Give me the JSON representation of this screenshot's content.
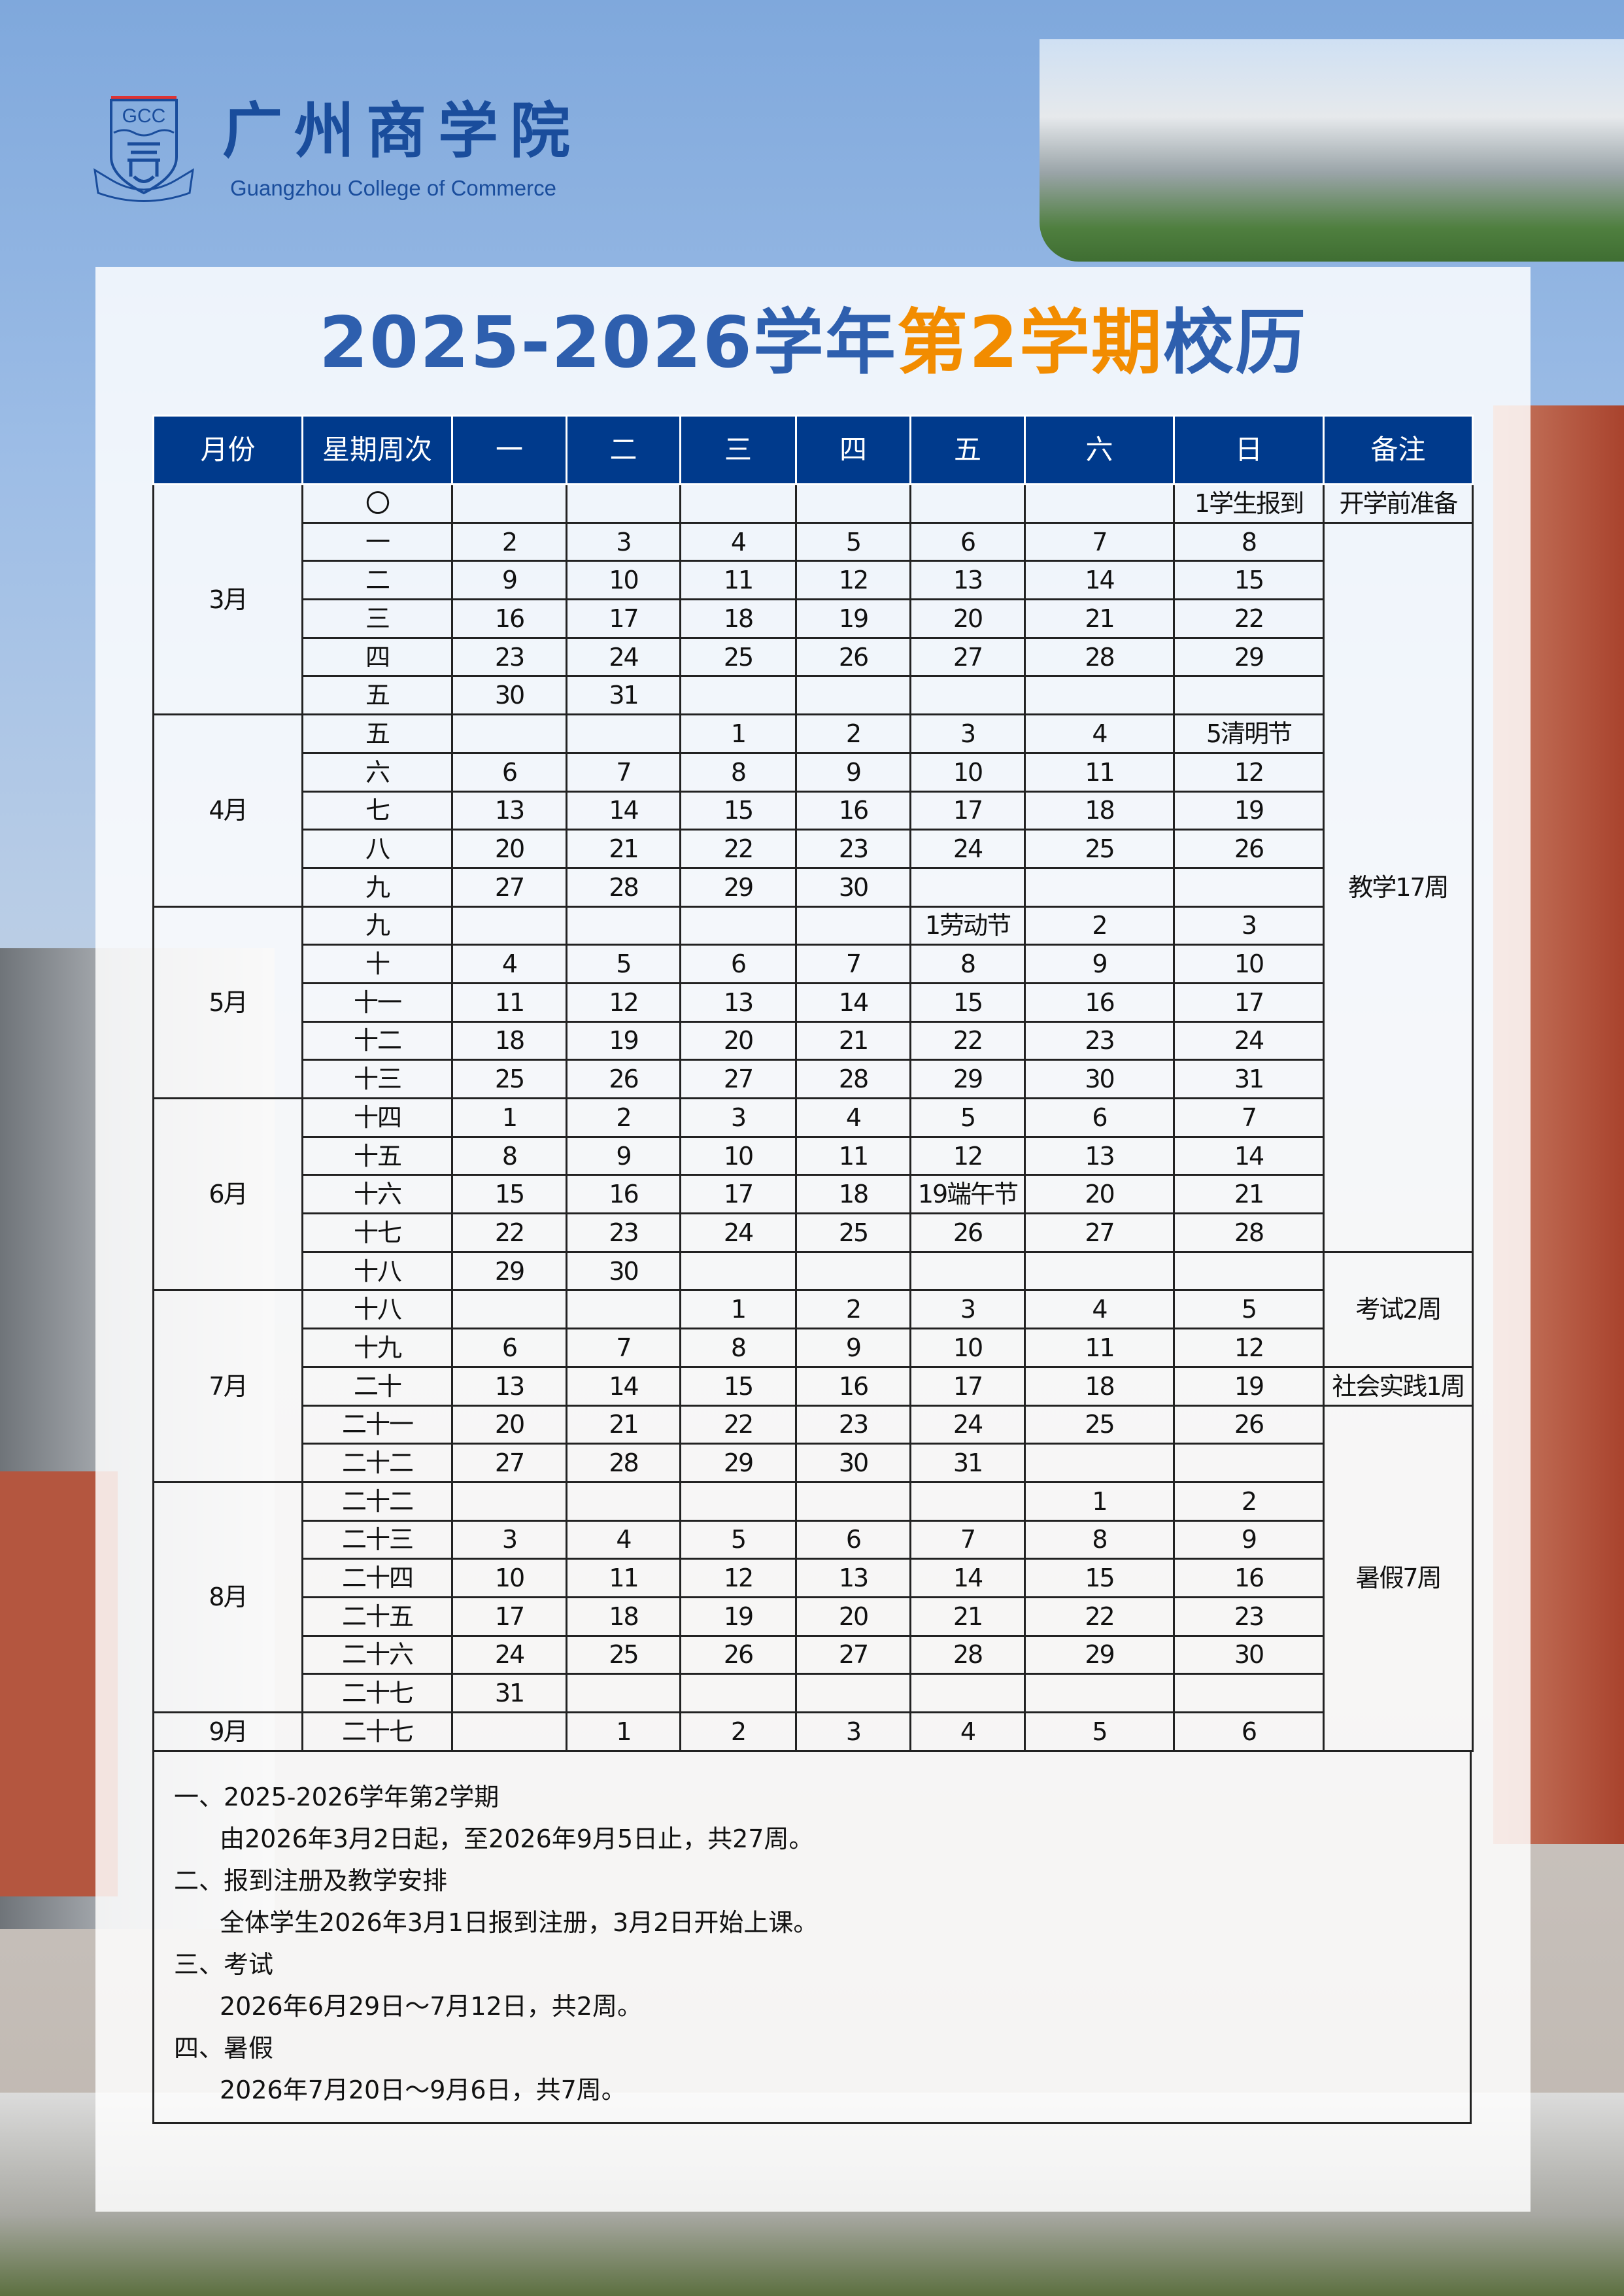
{
  "header": {
    "logo_text": "GCC",
    "school_name_cn": "广州商学院",
    "school_name_en": "Guangzhou College of Commerce"
  },
  "title": {
    "part1": "2025-2026学年",
    "highlight": "第2学期",
    "part2": "校历"
  },
  "colors": {
    "header_bg": "#003a8c",
    "title_blue": "#2e5fae",
    "title_orange": "#f28c00"
  },
  "table": {
    "headers": [
      "月份",
      "星期周次",
      "一",
      "二",
      "三",
      "四",
      "五",
      "六",
      "日",
      "备注"
    ],
    "months": [
      {
        "month": "3月",
        "rows": [
          {
            "week": "〇",
            "days": [
              "",
              "",
              "",
              "",
              "",
              "",
              "1学生报到"
            ]
          },
          {
            "week": "一",
            "days": [
              "2",
              "3",
              "4",
              "5",
              "6",
              "7",
              "8"
            ]
          },
          {
            "week": "二",
            "days": [
              "9",
              "10",
              "11",
              "12",
              "13",
              "14",
              "15"
            ]
          },
          {
            "week": "三",
            "days": [
              "16",
              "17",
              "18",
              "19",
              "20",
              "21",
              "22"
            ]
          },
          {
            "week": "四",
            "days": [
              "23",
              "24",
              "25",
              "26",
              "27",
              "28",
              "29"
            ]
          },
          {
            "week": "五",
            "days": [
              "30",
              "31",
              "",
              "",
              "",
              "",
              ""
            ]
          }
        ]
      },
      {
        "month": "4月",
        "rows": [
          {
            "week": "五",
            "days": [
              "",
              "",
              "1",
              "2",
              "3",
              "4",
              "5清明节"
            ]
          },
          {
            "week": "六",
            "days": [
              "6",
              "7",
              "8",
              "9",
              "10",
              "11",
              "12"
            ]
          },
          {
            "week": "七",
            "days": [
              "13",
              "14",
              "15",
              "16",
              "17",
              "18",
              "19"
            ]
          },
          {
            "week": "八",
            "days": [
              "20",
              "21",
              "22",
              "23",
              "24",
              "25",
              "26"
            ]
          },
          {
            "week": "九",
            "days": [
              "27",
              "28",
              "29",
              "30",
              "",
              "",
              ""
            ]
          }
        ]
      },
      {
        "month": "5月",
        "rows": [
          {
            "week": "九",
            "days": [
              "",
              "",
              "",
              "",
              "1劳动节",
              "2",
              "3"
            ]
          },
          {
            "week": "十",
            "days": [
              "4",
              "5",
              "6",
              "7",
              "8",
              "9",
              "10"
            ]
          },
          {
            "week": "十一",
            "days": [
              "11",
              "12",
              "13",
              "14",
              "15",
              "16",
              "17"
            ]
          },
          {
            "week": "十二",
            "days": [
              "18",
              "19",
              "20",
              "21",
              "22",
              "23",
              "24"
            ]
          },
          {
            "week": "十三",
            "days": [
              "25",
              "26",
              "27",
              "28",
              "29",
              "30",
              "31"
            ]
          }
        ]
      },
      {
        "month": "6月",
        "rows": [
          {
            "week": "十四",
            "days": [
              "1",
              "2",
              "3",
              "4",
              "5",
              "6",
              "7"
            ]
          },
          {
            "week": "十五",
            "days": [
              "8",
              "9",
              "10",
              "11",
              "12",
              "13",
              "14"
            ]
          },
          {
            "week": "十六",
            "days": [
              "15",
              "16",
              "17",
              "18",
              "19端午节",
              "20",
              "21"
            ]
          },
          {
            "week": "十七",
            "days": [
              "22",
              "23",
              "24",
              "25",
              "26",
              "27",
              "28"
            ]
          },
          {
            "week": "十八",
            "days": [
              "29",
              "30",
              "",
              "",
              "",
              "",
              ""
            ]
          }
        ]
      },
      {
        "month": "7月",
        "rows": [
          {
            "week": "十八",
            "days": [
              "",
              "",
              "1",
              "2",
              "3",
              "4",
              "5"
            ]
          },
          {
            "week": "十九",
            "days": [
              "6",
              "7",
              "8",
              "9",
              "10",
              "11",
              "12"
            ]
          },
          {
            "week": "二十",
            "days": [
              "13",
              "14",
              "15",
              "16",
              "17",
              "18",
              "19"
            ]
          },
          {
            "week": "二十一",
            "days": [
              "20",
              "21",
              "22",
              "23",
              "24",
              "25",
              "26"
            ]
          },
          {
            "week": "二十二",
            "days": [
              "27",
              "28",
              "29",
              "30",
              "31",
              "",
              ""
            ]
          }
        ]
      },
      {
        "month": "8月",
        "rows": [
          {
            "week": "二十二",
            "days": [
              "",
              "",
              "",
              "",
              "",
              "1",
              "2"
            ]
          },
          {
            "week": "二十三",
            "days": [
              "3",
              "4",
              "5",
              "6",
              "7",
              "8",
              "9"
            ]
          },
          {
            "week": "二十四",
            "days": [
              "10",
              "11",
              "12",
              "13",
              "14",
              "15",
              "16"
            ]
          },
          {
            "week": "二十五",
            "days": [
              "17",
              "18",
              "19",
              "20",
              "21",
              "22",
              "23"
            ]
          },
          {
            "week": "二十六",
            "days": [
              "24",
              "25",
              "26",
              "27",
              "28",
              "29",
              "30"
            ]
          },
          {
            "week": "二十七",
            "days": [
              "31",
              "",
              "",
              "",
              "",
              "",
              ""
            ]
          }
        ]
      },
      {
        "month": "9月",
        "rows": [
          {
            "week": "二十七",
            "days": [
              "",
              "1",
              "2",
              "3",
              "4",
              "5",
              "6"
            ]
          }
        ]
      }
    ],
    "remarks": [
      {
        "text": "开学前准备",
        "rows": 1
      },
      {
        "text": "教学17周",
        "rows": 19
      },
      {
        "text": "考试2周",
        "rows": 3
      },
      {
        "text": "社会实践1周",
        "rows": 1
      },
      {
        "text": "暑假7周",
        "rows": 9
      }
    ]
  },
  "notes": [
    {
      "heading": "一、2025-2026学年第2学期",
      "body": "由2026年3月2日起，至2026年9月5日止，共27周。"
    },
    {
      "heading": "二、报到注册及教学安排",
      "body": "全体学生2026年3月1日报到注册，3月2日开始上课。"
    },
    {
      "heading": "三、考试",
      "body": "2026年6月29日～7月12日，共2周。"
    },
    {
      "heading": "四、暑假",
      "body": "2026年7月20日～9月6日，共7周。"
    }
  ]
}
